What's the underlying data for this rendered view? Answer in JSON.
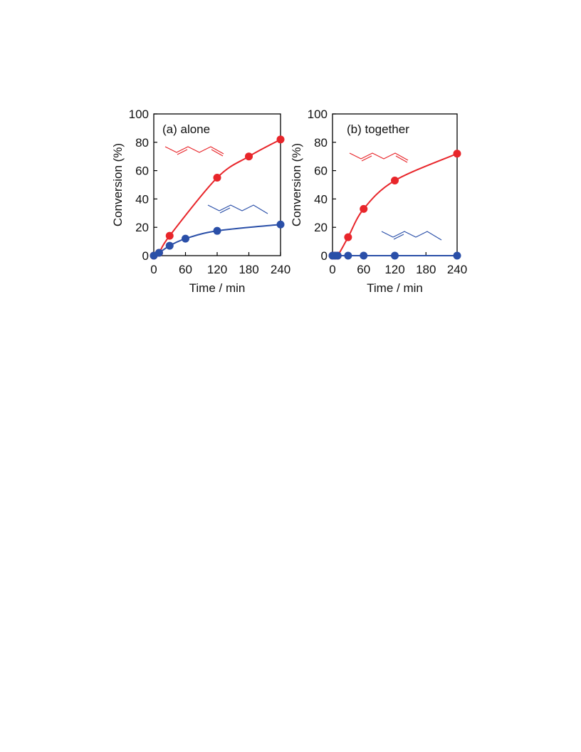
{
  "chart_data": [
    {
      "type": "line",
      "panel_label": "(a) alone",
      "xlabel": "Time / min",
      "ylabel": "Conversion (%)",
      "xlim": [
        0,
        240
      ],
      "ylim": [
        0,
        100
      ],
      "xticks": [
        0,
        60,
        120,
        180,
        240
      ],
      "yticks": [
        0,
        20,
        40,
        60,
        80,
        100
      ],
      "grid": false,
      "series": [
        {
          "color": "#e8252a",
          "structure": "diene",
          "x": [
            0,
            10,
            30,
            120,
            180,
            240
          ],
          "y": [
            0,
            2,
            14,
            55,
            70,
            82
          ]
        },
        {
          "color": "#2a4fa8",
          "structure": "alkene",
          "x": [
            0,
            10,
            30,
            60,
            120,
            240
          ],
          "y": [
            0,
            2,
            7,
            12,
            17.5,
            22
          ]
        }
      ]
    },
    {
      "type": "line",
      "panel_label": "(b) together",
      "xlabel": "Time / min",
      "ylabel": "Conversion (%)",
      "xlim": [
        0,
        240
      ],
      "ylim": [
        0,
        100
      ],
      "xticks": [
        0,
        60,
        120,
        180,
        240
      ],
      "yticks": [
        0,
        20,
        40,
        60,
        80,
        100
      ],
      "grid": false,
      "series": [
        {
          "color": "#e8252a",
          "structure": "diene",
          "x": [
            0,
            5,
            10,
            30,
            60,
            120,
            240
          ],
          "y": [
            0,
            0,
            0,
            13,
            33,
            53,
            72
          ]
        },
        {
          "color": "#2a4fa8",
          "structure": "alkene",
          "x": [
            0,
            5,
            10,
            30,
            60,
            120,
            240
          ],
          "y": [
            0,
            0,
            0,
            0,
            0,
            0,
            0
          ]
        }
      ]
    }
  ]
}
